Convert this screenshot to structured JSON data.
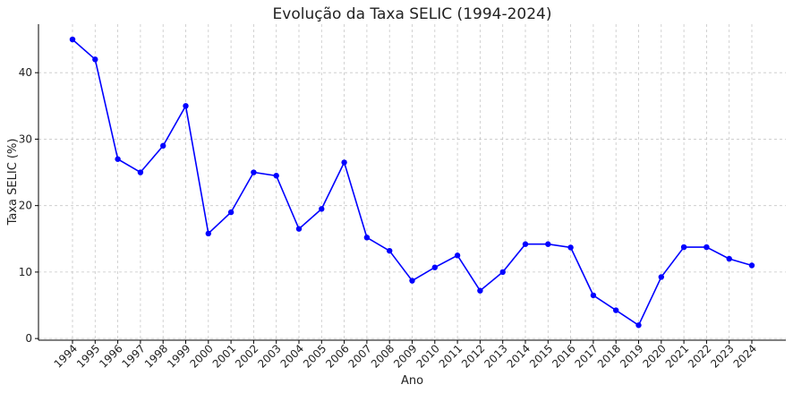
{
  "chart_data": {
    "type": "line",
    "title": "Evolução da Taxa SELIC (1994-2024)",
    "xlabel": "Ano",
    "ylabel": "Taxa SELIC (%)",
    "x": [
      "1994",
      "1995",
      "1996",
      "1997",
      "1998",
      "1999",
      "2000",
      "2001",
      "2002",
      "2003",
      "2004",
      "2005",
      "2006",
      "2007",
      "2008",
      "2009",
      "2010",
      "2011",
      "2012",
      "2013",
      "2014",
      "2015",
      "2016",
      "2017",
      "2018",
      "2019",
      "2020",
      "2021",
      "2022",
      "2023",
      "2024"
    ],
    "series": [
      {
        "values": [
          45,
          42,
          27,
          25,
          29,
          35,
          15.8,
          19,
          25,
          24.5,
          16.5,
          19.5,
          26.5,
          15.2,
          13.2,
          8.7,
          10.7,
          12.5,
          7.2,
          10,
          14.2,
          14.2,
          13.7,
          6.5,
          4.25,
          2,
          9.25,
          13.75,
          13.75,
          12,
          11
        ],
        "color": "#0000ff"
      }
    ],
    "yticks": [
      0,
      10,
      20,
      30,
      40
    ],
    "ylim": [
      -0.25,
      47.3
    ],
    "grid": true,
    "x_tick_rotation": 45
  }
}
